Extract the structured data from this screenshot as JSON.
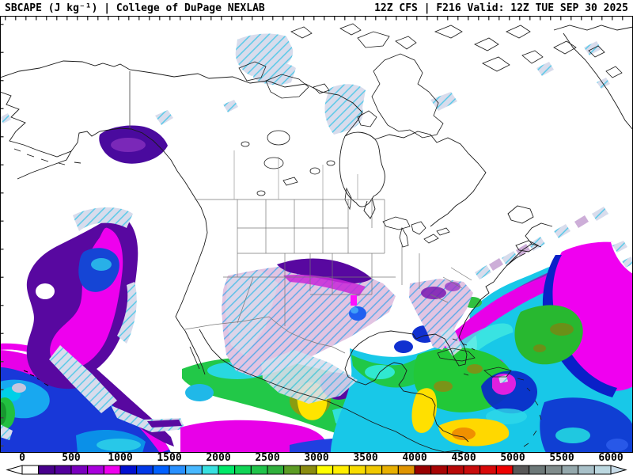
{
  "header": {
    "left": "SBCAPE (J kg⁻¹) | College of DuPage NEXLAB",
    "right": "12Z CFS | F216 Valid: 12Z TUE SEP 30 2025"
  },
  "product": {
    "variable": "SBCAPE",
    "units": "J kg⁻¹",
    "source": "College of DuPage NEXLAB",
    "run": "12Z",
    "model": "CFS",
    "forecast_hour": "F216",
    "valid": "12Z TUE SEP 30 2025"
  },
  "colorbar": {
    "tick_labels": [
      "0",
      "500",
      "1000",
      "1500",
      "2000",
      "2500",
      "3000",
      "3500",
      "4000",
      "4500",
      "5000",
      "5500",
      "6000"
    ],
    "tick_values": [
      0,
      500,
      1000,
      1500,
      2000,
      2500,
      3000,
      3500,
      4000,
      4500,
      5000,
      5500,
      6000
    ],
    "min": 0,
    "max": 6000,
    "segment_colors": [
      "#FFFFFF",
      "#48008C",
      "#52009C",
      "#7A00BE",
      "#A800DC",
      "#EE00EE",
      "#0010D0",
      "#0038E8",
      "#0060FF",
      "#2890FF",
      "#48B8FF",
      "#38E0E0",
      "#00E868",
      "#10D455",
      "#20C44A",
      "#30B03C",
      "#5C9C24",
      "#8A8C10",
      "#FFFF00",
      "#FFEE00",
      "#F8DC00",
      "#F0C800",
      "#E8B000",
      "#E09400",
      "#980000",
      "#A80404",
      "#B80808",
      "#C80C0C",
      "#D80808",
      "#EE0000",
      "#585858",
      "#6C7878",
      "#808C8C",
      "#94A8AC",
      "#A8C0C8",
      "#BCD8E0"
    ],
    "left_arrow_color": "#FFFFFF",
    "right_arrow_color": "#C8DCE8",
    "outline_color": "#000000"
  }
}
